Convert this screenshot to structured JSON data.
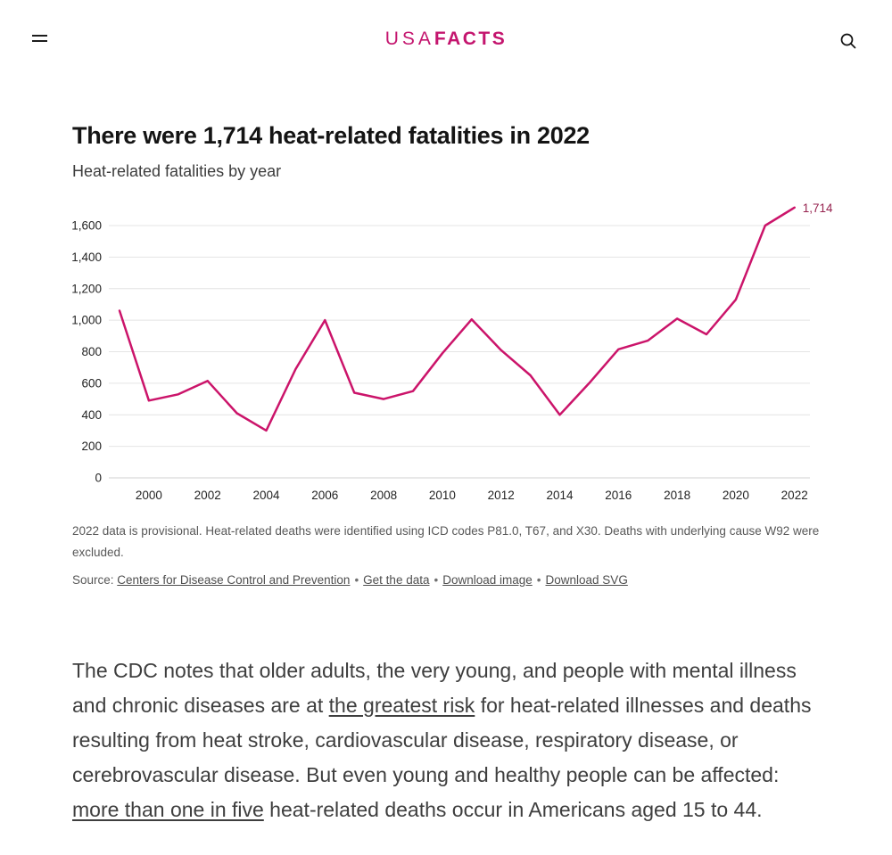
{
  "header": {
    "brand_color": "#c4156e",
    "logo": {
      "part1": "USA",
      "part2": "FACTS"
    }
  },
  "article": {
    "title": "There were 1,714 heat-related fatalities in 2022",
    "subtitle": "Heat-related fatalities by year"
  },
  "chart_data": {
    "type": "line",
    "title": "Heat-related fatalities by year",
    "series_name": "Heat-related fatalities",
    "x": [
      1999,
      2000,
      2001,
      2002,
      2003,
      2004,
      2005,
      2006,
      2007,
      2008,
      2009,
      2010,
      2011,
      2012,
      2013,
      2014,
      2015,
      2016,
      2017,
      2018,
      2019,
      2020,
      2021,
      2022
    ],
    "values": [
      1060,
      490,
      530,
      615,
      410,
      300,
      690,
      1000,
      540,
      500,
      550,
      790,
      1005,
      810,
      650,
      400,
      600,
      815,
      870,
      1010,
      910,
      1130,
      1600,
      1714
    ],
    "end_label": "1,714",
    "xlabel": "",
    "ylabel": "",
    "ylim": [
      0,
      1600
    ],
    "grid": true,
    "legend": "none",
    "y_ticks": [
      0,
      200,
      400,
      600,
      800,
      1000,
      1200,
      1400,
      1600
    ],
    "y_tick_labels": [
      "0",
      "200",
      "400",
      "600",
      "800",
      "1,000",
      "1,200",
      "1,400",
      "1,600"
    ],
    "x_tick_labels": [
      2000,
      2002,
      2004,
      2006,
      2008,
      2010,
      2012,
      2014,
      2016,
      2018,
      2020,
      2022
    ],
    "line_color": "#cb146a",
    "end_label_color": "#96234f",
    "gridline_color": "#e4e4e4",
    "axis_line_color": "#d2d2d2",
    "tick_label_color": "#242424"
  },
  "chart_notes": {
    "footnote": "2022 data is provisional. Heat-related deaths were identified using ICD codes P81.0, T67, and X30. Deaths with underlying cause W92 were excluded.",
    "source_label": "Source:",
    "separator": "•",
    "links": [
      "Centers for Disease Control and Prevention",
      "Get the data",
      "Download image",
      "Download SVG"
    ]
  },
  "body": {
    "paragraph_segments": [
      {
        "text": "The CDC notes that older adults, the very young, and people with mental illness and chronic diseases are at ",
        "link": false
      },
      {
        "text": "the greatest risk",
        "link": true
      },
      {
        "text": " for heat-related illnesses and deaths resulting from heat stroke, cardiovascular disease, respiratory disease, or cerebrovascular disease. But even young and healthy people can be affected: ",
        "link": false
      },
      {
        "text": "more than one in five",
        "link": true
      },
      {
        "text": " heat-related deaths occur in Americans aged 15 to 44.",
        "link": false
      }
    ]
  }
}
